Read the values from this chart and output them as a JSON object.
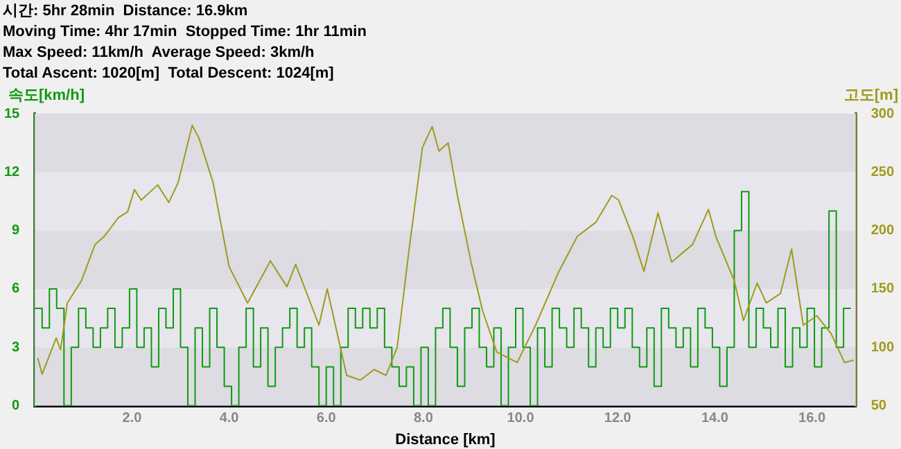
{
  "chart_data": {
    "type": "line",
    "annotations": [
      "시간: 5hr 28min  Distance: 16.9km",
      "Moving Time: 4hr 17min  Stopped Time: 1hr 11min",
      "Max Speed: 11km/h  Average Speed: 3km/h",
      "Total Ascent: 1020[m]  Total Descent: 1024[m]"
    ],
    "xlabel": "Distance [km]",
    "ylabel": "속도[km/h]",
    "y2label": "고도[m]",
    "xlim": [
      0,
      16.9
    ],
    "xticks": [
      {
        "value": 2,
        "label": "2.0"
      },
      {
        "value": 4,
        "label": "4.0"
      },
      {
        "value": 6,
        "label": "6.0"
      },
      {
        "value": 8,
        "label": "8.0"
      },
      {
        "value": 10,
        "label": "10.0"
      },
      {
        "value": 12,
        "label": "12.0"
      },
      {
        "value": 14,
        "label": "14.0"
      },
      {
        "value": 16,
        "label": "16.0"
      }
    ],
    "ylim": [
      0,
      15
    ],
    "yticks": [
      0,
      3,
      6,
      9,
      12,
      15
    ],
    "y2lim": [
      50,
      300
    ],
    "y2ticks": [
      50,
      100,
      150,
      200,
      250,
      300
    ],
    "grid": true,
    "legend": false,
    "marker": "none",
    "line_style": "solid",
    "series": [
      {
        "type": "step",
        "color": "#119911",
        "x": [
          0,
          0.15,
          0.3,
          0.45,
          0.6,
          0.75,
          0.9,
          1.05,
          1.2,
          1.35,
          1.5,
          1.65,
          1.8,
          1.95,
          2.1,
          2.25,
          2.4,
          2.55,
          2.7,
          2.85,
          3,
          3.15,
          3.3,
          3.45,
          3.6,
          3.75,
          3.9,
          4.05,
          4.2,
          4.35,
          4.5,
          4.65,
          4.8,
          4.95,
          5.1,
          5.25,
          5.4,
          5.55,
          5.7,
          5.85,
          6,
          6.15,
          6.3,
          6.45,
          6.6,
          6.75,
          6.9,
          7.05,
          7.2,
          7.35,
          7.5,
          7.65,
          7.8,
          7.95,
          8.1,
          8.25,
          8.4,
          8.55,
          8.7,
          8.85,
          9,
          9.15,
          9.3,
          9.45,
          9.6,
          9.75,
          9.9,
          10.05,
          10.2,
          10.35,
          10.5,
          10.65,
          10.8,
          10.95,
          11.1,
          11.25,
          11.4,
          11.55,
          11.7,
          11.85,
          12,
          12.15,
          12.3,
          12.45,
          12.6,
          12.75,
          12.9,
          13.05,
          13.2,
          13.35,
          13.5,
          13.65,
          13.8,
          13.95,
          14.1,
          14.25,
          14.4,
          14.55,
          14.7,
          14.85,
          15,
          15.15,
          15.3,
          15.45,
          15.6,
          15.75,
          15.9,
          16.05,
          16.2,
          16.35,
          16.5,
          16.65,
          16.8
        ],
        "values": [
          5,
          4,
          6,
          5,
          0,
          3,
          5,
          4,
          3,
          4,
          5,
          3,
          4,
          6,
          3,
          4,
          2,
          5,
          4,
          6,
          3,
          0,
          4,
          2,
          5,
          3,
          1,
          0,
          3,
          5,
          2,
          4,
          1,
          3,
          4,
          5,
          3,
          4,
          2,
          0,
          2,
          0,
          3,
          5,
          4,
          5,
          4,
          5,
          3,
          2,
          1,
          2,
          0,
          3,
          0,
          4,
          5,
          3,
          1,
          4,
          5,
          3,
          2,
          4,
          0,
          3,
          5,
          3,
          0,
          4,
          2,
          5,
          4,
          3,
          5,
          4,
          2,
          4,
          3,
          5,
          4,
          5,
          3,
          2,
          4,
          1,
          5,
          4,
          3,
          4,
          2,
          5,
          4,
          3,
          1,
          3,
          9,
          11,
          3,
          5,
          4,
          3,
          5,
          2,
          4,
          3,
          5,
          2,
          4,
          10,
          3,
          5,
          5
        ]
      },
      {
        "type": "line",
        "axis": "y2",
        "color": "#a09a1c",
        "x": [
          0.06,
          0.15,
          0.44,
          0.53,
          0.67,
          0.96,
          1.24,
          1.43,
          1.72,
          1.91,
          2.05,
          2.19,
          2.53,
          2.76,
          2.95,
          3.24,
          3.38,
          3.67,
          4.0,
          4.38,
          4.85,
          5.19,
          5.37,
          5.85,
          6.02,
          6.42,
          6.7,
          6.99,
          7.23,
          7.46,
          7.7,
          7.98,
          8.18,
          8.32,
          8.51,
          8.7,
          8.98,
          9.22,
          9.51,
          9.93,
          10.31,
          10.79,
          11.17,
          11.55,
          11.88,
          12.02,
          12.31,
          12.54,
          12.83,
          13.11,
          13.54,
          13.87,
          14.02,
          14.4,
          14.59,
          14.87,
          15.06,
          15.35,
          15.58,
          15.82,
          16.1,
          16.39,
          16.67,
          16.86
        ],
        "values": [
          91,
          77,
          108,
          98,
          138,
          157,
          188,
          195,
          211,
          216,
          235,
          226,
          239,
          224,
          241,
          290,
          279,
          241,
          169,
          138,
          174,
          152,
          171,
          119,
          150,
          76,
          72,
          81,
          76,
          100,
          182,
          271,
          289,
          268,
          275,
          230,
          173,
          131,
          96,
          87,
          119,
          165,
          195,
          207,
          230,
          226,
          195,
          165,
          215,
          173,
          188,
          218,
          195,
          157,
          123,
          155,
          138,
          146,
          184,
          119,
          127,
          112,
          87,
          89
        ]
      }
    ]
  }
}
